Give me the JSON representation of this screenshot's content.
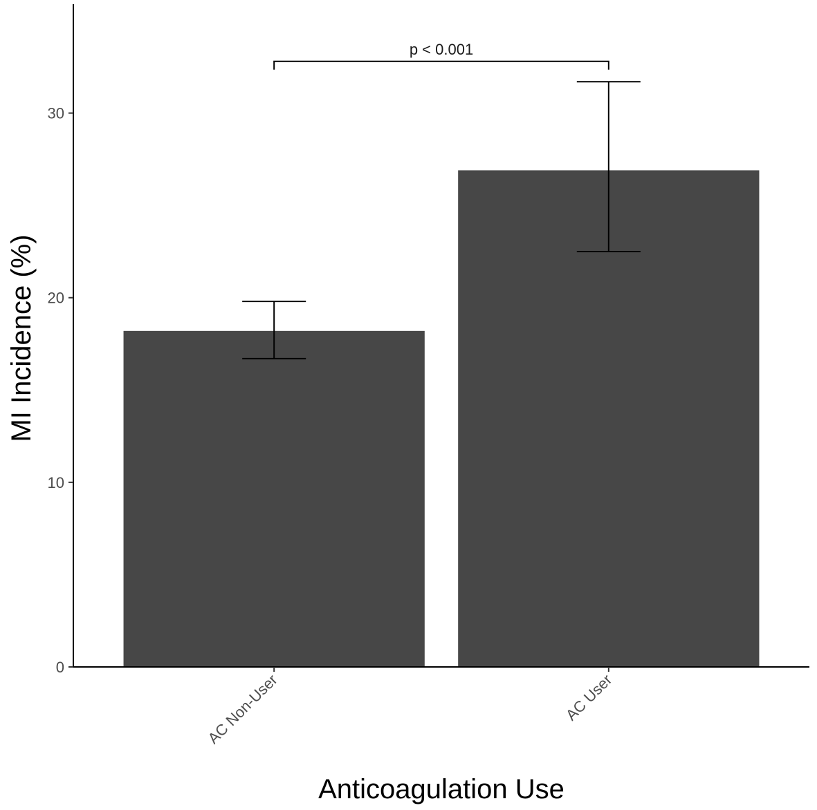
{
  "chart_data": {
    "type": "bar",
    "categories": [
      "AC Non-User",
      "AC User"
    ],
    "values": [
      18.2,
      26.9
    ],
    "error_low": [
      16.7,
      22.5
    ],
    "error_high": [
      19.8,
      31.7
    ],
    "title": "",
    "xlabel": "Anticoagulation Use",
    "ylabel": "MI Incidence (%)",
    "ylim": [
      0,
      35.9
    ],
    "yticks": [
      0,
      10,
      20,
      30
    ],
    "grid": false,
    "bar_color": "#474747",
    "annotations": [
      {
        "text": "p < 0.001",
        "from": "AC Non-User",
        "to": "AC User",
        "y": 32.8
      }
    ]
  }
}
